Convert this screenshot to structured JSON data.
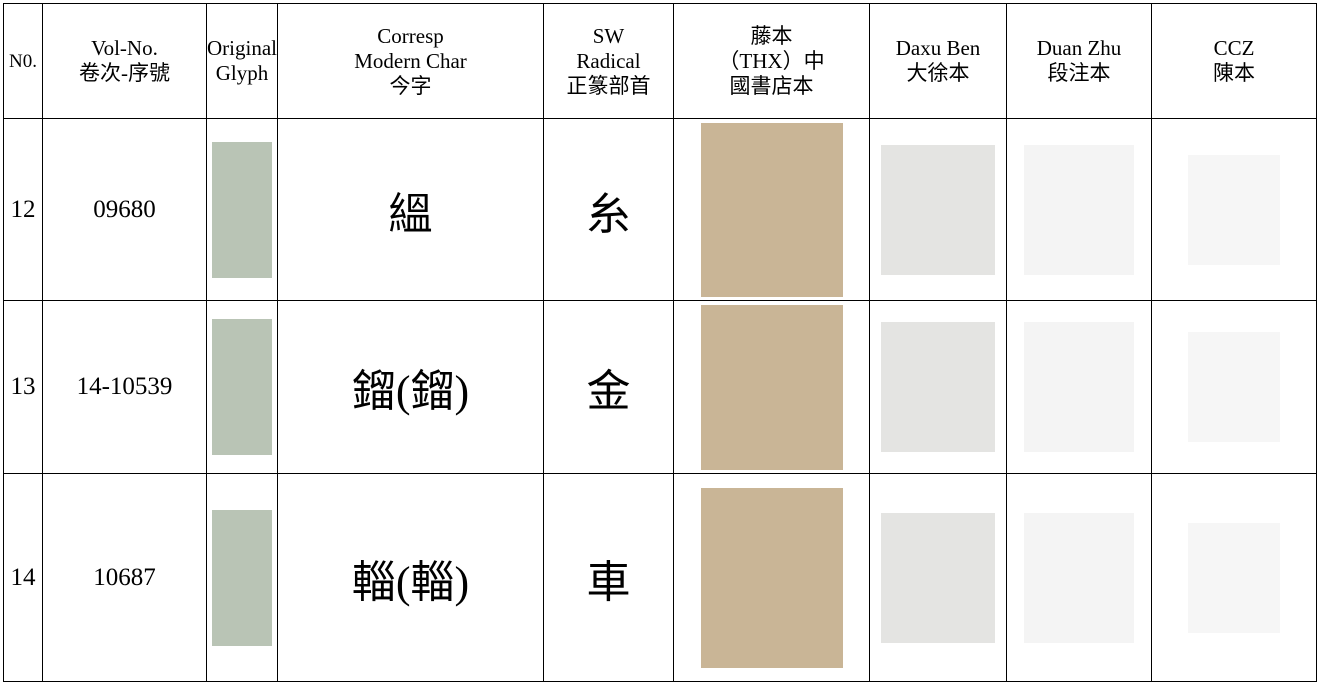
{
  "table": {
    "header": [
      [
        "N0."
      ],
      [
        "Vol-No.",
        "卷次-序號"
      ],
      [
        "Original",
        "Glyph"
      ],
      [
        "Corresp",
        "Modern Char",
        "今字"
      ],
      [
        "SW",
        "Radical",
        "正篆部首"
      ],
      [
        "藤本",
        "（THX）中",
        "國書店本"
      ],
      [
        "Daxu Ben",
        "大徐本"
      ],
      [
        "Duan Zhu",
        "段注本"
      ],
      [
        "CCZ",
        "陳本"
      ]
    ],
    "rows": [
      [
        "12",
        "09680",
        "縕",
        "糸"
      ],
      [
        "13",
        "14-10539",
        "鎦(鎦)",
        "金"
      ],
      [
        "14",
        "10687",
        "輜(輜)",
        "車"
      ]
    ]
  }
}
